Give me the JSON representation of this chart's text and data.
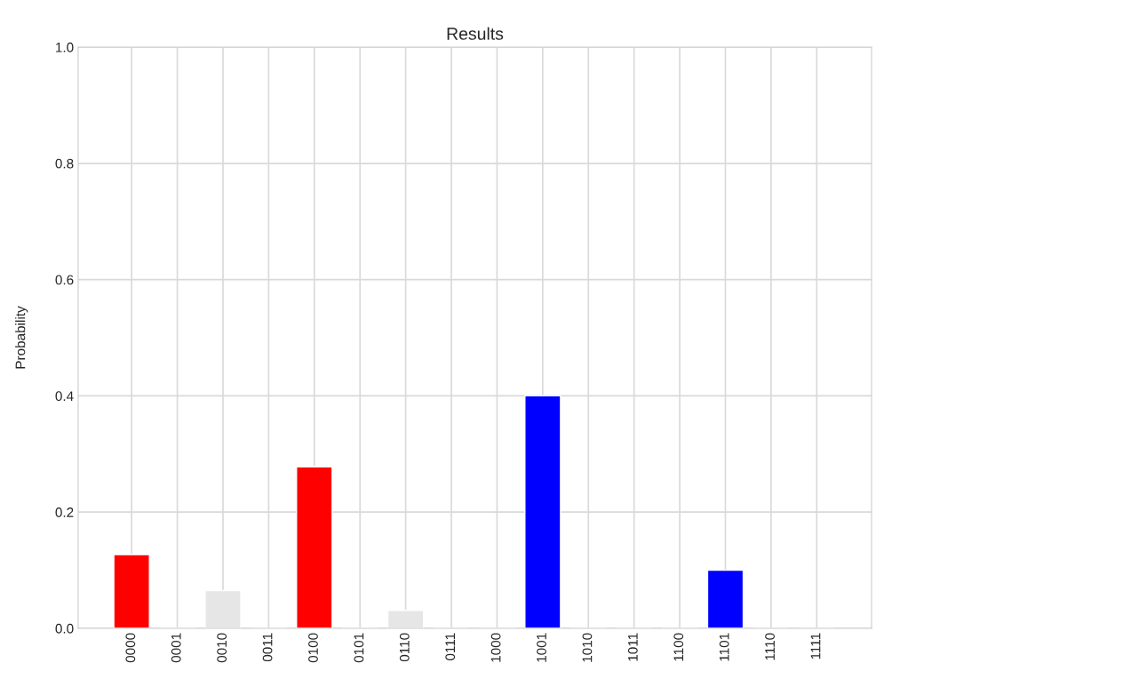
{
  "chart_data": {
    "type": "bar",
    "title": "Results",
    "ylabel": "Probability",
    "categories": [
      "0000",
      "0001",
      "0010",
      "0011",
      "0100",
      "0101",
      "0110",
      "0111",
      "1000",
      "1001",
      "1010",
      "1011",
      "1100",
      "1101",
      "1110",
      "1111"
    ],
    "values": [
      0.127,
      0,
      0.065,
      0,
      0.278,
      0,
      0.031,
      0,
      0,
      0.4,
      0,
      0,
      0,
      0.1,
      0,
      0
    ],
    "colors": [
      "#ff0000",
      null,
      "#e6e6e6",
      null,
      "#ff0000",
      null,
      "#e6e6e6",
      null,
      null,
      "#0000ff",
      null,
      null,
      null,
      "#0000ff",
      null,
      null
    ],
    "ylim": [
      0,
      1
    ],
    "yticks": [
      {
        "value": 0,
        "label": "0.0"
      },
      {
        "value": 0.2,
        "label": "0.2"
      },
      {
        "value": 0.4,
        "label": "0.4"
      },
      {
        "value": 0.6,
        "label": "0.6"
      },
      {
        "value": 0.8,
        "label": "0.8"
      },
      {
        "value": 1,
        "label": "1.0"
      }
    ],
    "grid": true,
    "legend": false
  }
}
